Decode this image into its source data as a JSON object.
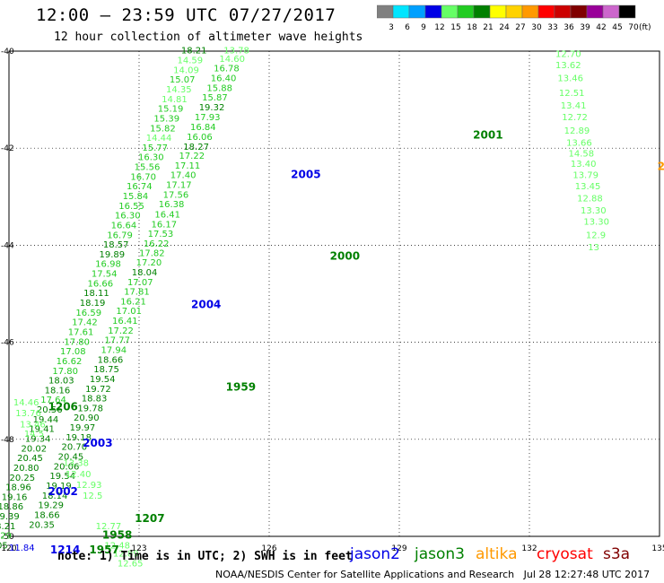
{
  "header": {
    "title": "12:00 – 23:59 UTC 07/27/2017",
    "subtitle": "12 hour collection of altimeter wave heights"
  },
  "legend": {
    "bins": [
      {
        "label": "3",
        "color": "#808080"
      },
      {
        "label": "6",
        "color": "#00e5ff"
      },
      {
        "label": "9",
        "color": "#00a0ff"
      },
      {
        "label": "12",
        "color": "#0000e6"
      },
      {
        "label": "15",
        "color": "#66ff66"
      },
      {
        "label": "18",
        "color": "#22cc22"
      },
      {
        "label": "21",
        "color": "#008000"
      },
      {
        "label": "24",
        "color": "#ffff00"
      },
      {
        "label": "27",
        "color": "#ffd200"
      },
      {
        "label": "30",
        "color": "#ff9900"
      },
      {
        "label": "33",
        "color": "#ff0000"
      },
      {
        "label": "36",
        "color": "#cc0000"
      },
      {
        "label": "39",
        "color": "#800000"
      },
      {
        "label": "42",
        "color": "#990099"
      },
      {
        "label": "45",
        "color": "#cc66cc"
      },
      {
        "label": "70",
        "color": "#000000"
      }
    ],
    "unit": "(ft)"
  },
  "map": {
    "lon_range": [
      120,
      135
    ],
    "lat_range": [
      -50,
      -40
    ],
    "lon_ticks": [
      "120",
      "123",
      "126",
      "129",
      "132",
      "135"
    ],
    "lat_ticks": [
      "-40",
      "-42",
      "-44",
      "-46",
      "-48",
      "-50"
    ],
    "grid": true
  },
  "tracks": [
    {
      "satellite": "jason3",
      "points": [
        [
          "13.78",
          124.95,
          -40.05
        ],
        [
          "14.60",
          124.85,
          -40.22
        ],
        [
          "16.78",
          124.72,
          -40.42
        ],
        [
          "16.40",
          124.65,
          -40.62
        ],
        [
          "15.88",
          124.56,
          -40.82
        ],
        [
          "15.87",
          124.45,
          -41.02
        ],
        [
          "19.32",
          124.38,
          -41.22
        ],
        [
          "17.93",
          124.28,
          -41.42
        ],
        [
          "16.84",
          124.18,
          -41.63
        ],
        [
          "16.06",
          124.1,
          -41.83
        ],
        [
          "18.27",
          124.02,
          -42.03
        ],
        [
          "17.22",
          123.92,
          -42.22
        ],
        [
          "17.11",
          123.82,
          -42.42
        ],
        [
          "17.40",
          123.72,
          -42.62
        ],
        [
          "17.17",
          123.62,
          -42.82
        ],
        [
          "17.56",
          123.55,
          -43.02
        ],
        [
          "16.38",
          123.45,
          -43.22
        ],
        [
          "16.41",
          123.36,
          -43.43
        ],
        [
          "16.17",
          123.28,
          -43.63
        ],
        [
          "17.53",
          123.2,
          -43.83
        ],
        [
          "16.22",
          123.1,
          -44.03
        ],
        [
          "17.82",
          123.0,
          -44.22
        ],
        [
          "17.20",
          122.93,
          -44.42
        ],
        [
          "18.04",
          122.83,
          -44.62
        ],
        [
          "17.07",
          122.73,
          -44.82
        ],
        [
          "17.81",
          122.65,
          -45.02
        ],
        [
          "16.21",
          122.57,
          -45.22
        ],
        [
          "17.01",
          122.47,
          -45.42
        ],
        [
          "16.41",
          122.38,
          -45.62
        ],
        [
          "17.22",
          122.28,
          -45.82
        ],
        [
          "17.77",
          122.2,
          -46.02
        ],
        [
          "17.94",
          122.12,
          -46.22
        ],
        [
          "18.66",
          122.04,
          -46.42
        ],
        [
          "18.75",
          121.95,
          -46.62
        ],
        [
          "19.54",
          121.86,
          -46.82
        ],
        [
          "19.72",
          121.76,
          -47.02
        ],
        [
          "18.83",
          121.67,
          -47.22
        ],
        [
          "19.78",
          121.58,
          -47.42
        ],
        [
          "20.90",
          121.49,
          -47.62
        ],
        [
          "19.97",
          121.4,
          -47.82
        ],
        [
          "19.18",
          121.31,
          -48.02
        ],
        [
          "20.70",
          121.21,
          -48.22
        ],
        [
          "20.45",
          121.13,
          -48.42
        ],
        [
          "20.06",
          121.03,
          -48.62
        ],
        [
          "19.54",
          120.94,
          -48.82
        ],
        [
          "19.19",
          120.85,
          -49.02
        ],
        [
          "18.14",
          120.76,
          -49.22
        ],
        [
          "19.29",
          120.67,
          -49.42
        ],
        [
          "18.66",
          120.58,
          -49.62
        ],
        [
          "20.35",
          120.46,
          -49.82
        ],
        [
          "18.21",
          123.97,
          -40.05
        ],
        [
          "14.59",
          123.88,
          -40.25
        ],
        [
          "14.09",
          123.79,
          -40.45
        ],
        [
          "15.07",
          123.7,
          -40.65
        ],
        [
          "14.35",
          123.62,
          -40.85
        ],
        [
          "14.81",
          123.52,
          -41.05
        ],
        [
          "15.19",
          123.43,
          -41.25
        ],
        [
          "15.39",
          123.34,
          -41.45
        ],
        [
          "15.82",
          123.25,
          -41.65
        ],
        [
          "14.44",
          123.16,
          -41.85
        ],
        [
          "15.77",
          123.07,
          -42.05
        ],
        [
          "16.30",
          122.98,
          -42.25
        ],
        [
          "15.56",
          122.89,
          -42.45
        ],
        [
          "16.70",
          122.8,
          -42.65
        ],
        [
          "16.74",
          122.71,
          -42.85
        ],
        [
          "15.84",
          122.62,
          -43.05
        ],
        [
          "16.55",
          122.53,
          -43.25
        ],
        [
          "16.30",
          122.44,
          -43.45
        ],
        [
          "16.64",
          122.35,
          -43.65
        ],
        [
          "16.79",
          122.26,
          -43.85
        ],
        [
          "18.57",
          122.17,
          -44.05
        ],
        [
          "19.89",
          122.08,
          -44.25
        ],
        [
          "16.98",
          121.99,
          -44.45
        ],
        [
          "17.54",
          121.9,
          -44.65
        ],
        [
          "16.66",
          121.81,
          -44.85
        ],
        [
          "18.11",
          121.72,
          -45.05
        ],
        [
          "18.19",
          121.63,
          -45.25
        ],
        [
          "16.59",
          121.54,
          -45.45
        ],
        [
          "17.42",
          121.45,
          -45.65
        ],
        [
          "17.61",
          121.36,
          -45.85
        ],
        [
          "17.80",
          121.27,
          -46.05
        ],
        [
          "17.08",
          121.18,
          -46.25
        ],
        [
          "16.62",
          121.09,
          -46.45
        ],
        [
          "17.80",
          121.0,
          -46.65
        ],
        [
          "18.03",
          120.91,
          -46.85
        ],
        [
          "18.16",
          120.82,
          -47.05
        ],
        [
          "17.64",
          120.73,
          -47.25
        ],
        [
          "20.56",
          120.64,
          -47.45
        ],
        [
          "19.44",
          120.55,
          -47.65
        ],
        [
          "19.41",
          120.46,
          -47.85
        ],
        [
          "19.34",
          120.37,
          -48.05
        ],
        [
          "20.02",
          120.28,
          -48.25
        ],
        [
          "20.45",
          120.19,
          -48.45
        ],
        [
          "20.80",
          120.1,
          -48.65
        ],
        [
          "20.25",
          120.01,
          -48.85
        ],
        [
          "18.96",
          119.92,
          -49.05
        ],
        [
          "19.16",
          119.83,
          -49.25
        ],
        [
          "18.86",
          119.74,
          -49.45
        ],
        [
          "19.39",
          119.65,
          -49.65
        ],
        [
          "18.21",
          119.56,
          -49.85
        ],
        [
          "16.29",
          119.47,
          -50.05
        ],
        [
          "19.05",
          119.38,
          -50.25
        ]
      ]
    }
  ],
  "labels": [
    {
      "text": "12.70",
      "lon": 132.6,
      "lat": -40.12
    },
    {
      "text": "13.62",
      "lon": 132.6,
      "lat": -40.35
    },
    {
      "text": "13.46",
      "lon": 132.65,
      "lat": -40.62
    },
    {
      "text": "12.51",
      "lon": 132.68,
      "lat": -40.92
    },
    {
      "text": "13.41",
      "lon": 132.72,
      "lat": -41.18
    },
    {
      "text": "12.72",
      "lon": 132.75,
      "lat": -41.42
    },
    {
      "text": "12.89",
      "lon": 132.8,
      "lat": -41.7
    },
    {
      "text": "13.66",
      "lon": 132.85,
      "lat": -41.95
    },
    {
      "text": "14.58",
      "lon": 132.9,
      "lat": -42.17
    },
    {
      "text": "13.40",
      "lon": 132.95,
      "lat": -42.38
    },
    {
      "text": "13.79",
      "lon": 133.0,
      "lat": -42.62
    },
    {
      "text": "13.45",
      "lon": 133.05,
      "lat": -42.85
    },
    {
      "text": "12.88",
      "lon": 133.1,
      "lat": -43.1
    },
    {
      "text": "13.30",
      "lon": 133.18,
      "lat": -43.35
    },
    {
      "text": "13.30",
      "lon": 133.25,
      "lat": -43.58
    },
    {
      "text": "12.9",
      "lon": 133.3,
      "lat": -43.85
    },
    {
      "text": "13",
      "lon": 133.35,
      "lat": -44.1
    },
    {
      "text": "14.46",
      "lon": 120.1,
      "lat": -47.3
    },
    {
      "text": "13.76",
      "lon": 120.15,
      "lat": -47.52
    },
    {
      "text": "13.46",
      "lon": 120.25,
      "lat": -47.75
    },
    {
      "text": "14.5",
      "lon": 120.35,
      "lat": -47.95
    },
    {
      "text": "13.38",
      "lon": 121.25,
      "lat": -48.55
    },
    {
      "text": "12.40",
      "lon": 121.3,
      "lat": -48.78
    },
    {
      "text": "12.93",
      "lon": 121.55,
      "lat": -49.0
    },
    {
      "text": "12.5",
      "lon": 121.7,
      "lat": -49.22
    },
    {
      "text": "12.77",
      "lon": 122.0,
      "lat": -49.85
    },
    {
      "text": "12.48",
      "lon": 122.2,
      "lat": -50.25
    },
    {
      "text": "12.89",
      "lon": 122.4,
      "lat": -50.42
    },
    {
      "text": "12.65",
      "lon": 122.5,
      "lat": -50.62
    },
    {
      "text": "11.84",
      "lon": 120.0,
      "lat": -50.3
    }
  ],
  "pass_labels": [
    {
      "text": "2001",
      "lon": 130.7,
      "lat": -41.8,
      "color": "#008000"
    },
    {
      "text": "2005",
      "lon": 126.5,
      "lat": -42.62,
      "color": "#0000e6"
    },
    {
      "text": "2000",
      "lon": 127.4,
      "lat": -44.3,
      "color": "#008000"
    },
    {
      "text": "2004",
      "lon": 124.2,
      "lat": -45.3,
      "color": "#0000e6"
    },
    {
      "text": "1959",
      "lon": 125.0,
      "lat": -47.0,
      "color": "#008000"
    },
    {
      "text": "1206",
      "lon": 120.9,
      "lat": -47.4,
      "color": "#008000"
    },
    {
      "text": "2003",
      "lon": 121.7,
      "lat": -48.15,
      "color": "#0000e6"
    },
    {
      "text": "2002",
      "lon": 120.9,
      "lat": -49.15,
      "color": "#0000e6"
    },
    {
      "text": "1207",
      "lon": 122.9,
      "lat": -49.7,
      "color": "#008000"
    },
    {
      "text": "1958",
      "lon": 122.15,
      "lat": -50.05,
      "color": "#008000"
    },
    {
      "text": "1957",
      "lon": 121.85,
      "lat": -50.35,
      "color": "#008000"
    },
    {
      "text": "1214",
      "lon": 120.95,
      "lat": -50.35,
      "color": "#0000e6"
    },
    {
      "text": "2",
      "lon": 134.95,
      "lat": -42.45,
      "color": "#ff9900"
    }
  ],
  "footer": {
    "note": "note: 1) Time is in UTC; 2) SWH is in feet",
    "satellites": [
      {
        "name": "jason2",
        "color": "#0000e6"
      },
      {
        "name": "jason3",
        "color": "#008000"
      },
      {
        "name": "altika",
        "color": "#ff9900"
      },
      {
        "name": "cryosat",
        "color": "#ff0000"
      },
      {
        "name": "s3a",
        "color": "#800000"
      }
    ],
    "credit": "NOAA/NESDIS Center for Satellite Applications and Research   Jul 28 12:27:48 UTC 2017"
  }
}
